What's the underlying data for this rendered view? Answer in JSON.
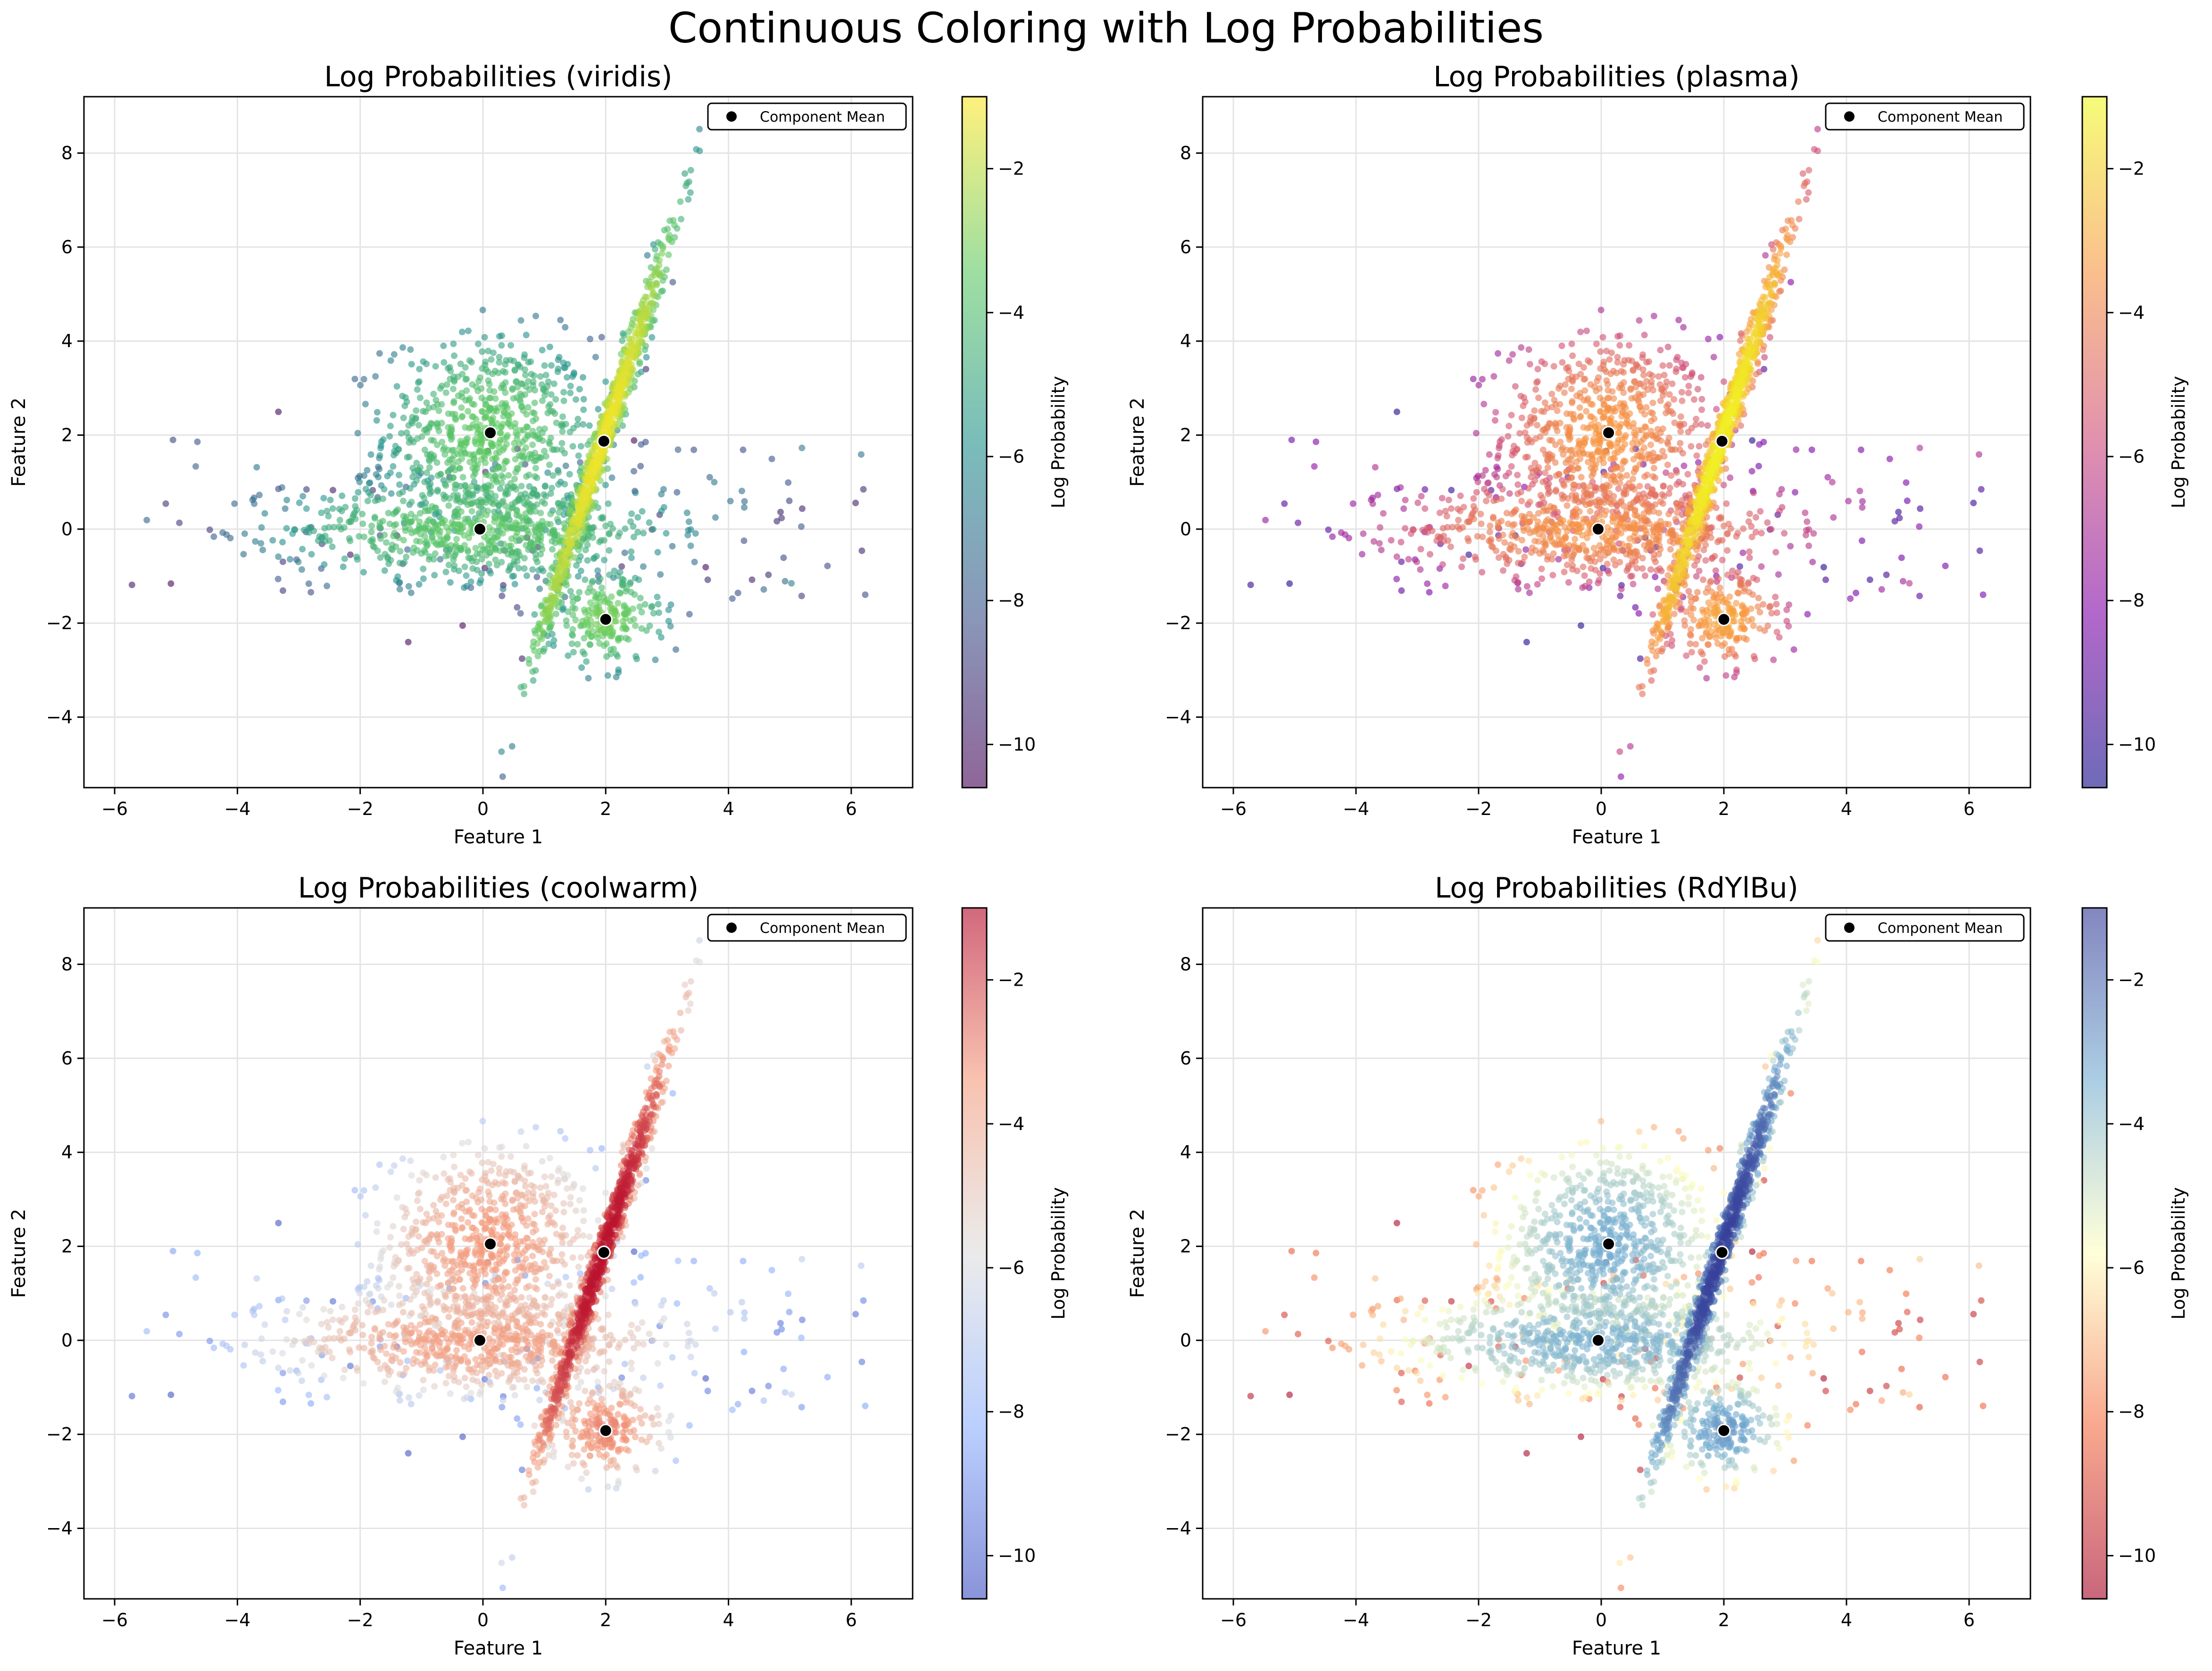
{
  "suptitle": "Continuous Coloring with Log Probabilities",
  "shared": {
    "xlabel": "Feature 1",
    "ylabel": "Feature 2",
    "colorbar_label": "Log Probability",
    "legend_label": "Component Mean",
    "mean_marker_color": "#000000",
    "grid": true,
    "legend_placement": "upper right"
  },
  "chart_data": [
    {
      "type": "scatter",
      "title": "Log Probabilities (viridis)",
      "colormap": "viridis",
      "colors": [
        "#440154",
        "#3b528b",
        "#21918c",
        "#5ec962",
        "#fde725"
      ],
      "xlim": [
        -6.5,
        7.0
      ],
      "ylim": [
        -5.5,
        9.2
      ],
      "xticks": [
        "−6",
        "−4",
        "−2",
        "0",
        "2",
        "4",
        "6"
      ],
      "yticks": [
        "−4",
        "−2",
        "0",
        "2",
        "4",
        "6",
        "8"
      ],
      "color_range": [
        -10.6,
        -1.0
      ],
      "cticks": [
        "−10",
        "−8",
        "−6",
        "−4",
        "−2"
      ],
      "component_means": [
        [
          0.12,
          2.05
        ],
        [
          -0.05,
          0.0
        ],
        [
          1.97,
          1.87
        ],
        [
          2.0,
          -1.92
        ]
      ]
    },
    {
      "type": "scatter",
      "title": "Log Probabilities (plasma)",
      "colormap": "plasma",
      "colors": [
        "#0d0887",
        "#7e03a8",
        "#cc4778",
        "#f89540",
        "#f0f921"
      ],
      "xlim": [
        -6.5,
        7.0
      ],
      "ylim": [
        -5.5,
        9.2
      ],
      "xticks": [
        "−6",
        "−4",
        "−2",
        "0",
        "2",
        "4",
        "6"
      ],
      "yticks": [
        "−4",
        "−2",
        "0",
        "2",
        "4",
        "6",
        "8"
      ],
      "color_range": [
        -10.6,
        -1.0
      ],
      "cticks": [
        "−10",
        "−8",
        "−6",
        "−4",
        "−2"
      ],
      "component_means": [
        [
          0.12,
          2.05
        ],
        [
          -0.05,
          0.0
        ],
        [
          1.97,
          1.87
        ],
        [
          2.0,
          -1.92
        ]
      ]
    },
    {
      "type": "scatter",
      "title": "Log Probabilities (coolwarm)",
      "colormap": "coolwarm",
      "colors": [
        "#3b4cc0",
        "#8db0fe",
        "#dddddd",
        "#f49a7b",
        "#b40426"
      ],
      "xlim": [
        -6.5,
        7.0
      ],
      "ylim": [
        -5.5,
        9.2
      ],
      "xticks": [
        "−6",
        "−4",
        "−2",
        "0",
        "2",
        "4",
        "6"
      ],
      "yticks": [
        "−4",
        "−2",
        "0",
        "2",
        "4",
        "6",
        "8"
      ],
      "color_range": [
        -10.6,
        -1.0
      ],
      "cticks": [
        "−10",
        "−8",
        "−6",
        "−4",
        "−2"
      ],
      "component_means": [
        [
          0.12,
          2.05
        ],
        [
          -0.05,
          0.0
        ],
        [
          1.97,
          1.87
        ],
        [
          2.0,
          -1.92
        ]
      ]
    },
    {
      "type": "scatter",
      "title": "Log Probabilities (RdYlBu)",
      "colormap": "RdYlBu",
      "colors": [
        "#a50026",
        "#f46d43",
        "#ffffbf",
        "#74add1",
        "#313695"
      ],
      "xlim": [
        -6.5,
        7.0
      ],
      "ylim": [
        -5.5,
        9.2
      ],
      "xticks": [
        "−6",
        "−4",
        "−2",
        "0",
        "2",
        "4",
        "6"
      ],
      "yticks": [
        "−4",
        "−2",
        "0",
        "2",
        "4",
        "6",
        "8"
      ],
      "color_range": [
        -10.6,
        -1.0
      ],
      "cticks": [
        "−10",
        "−8",
        "−6",
        "−4",
        "−2"
      ],
      "component_means": [
        [
          0.12,
          2.05
        ],
        [
          -0.05,
          0.0
        ],
        [
          1.97,
          1.87
        ],
        [
          2.0,
          -1.92
        ]
      ]
    }
  ]
}
